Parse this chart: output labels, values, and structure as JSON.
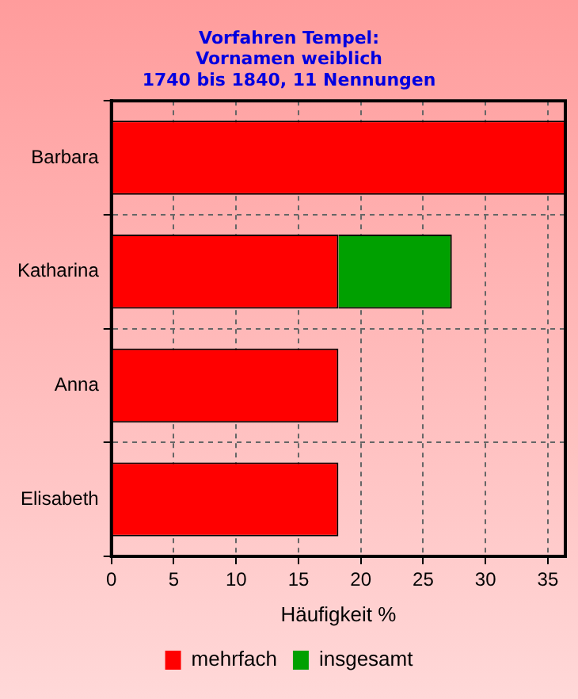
{
  "chart_data": {
    "type": "bar",
    "orientation": "horizontal",
    "stacked": true,
    "title": "Vorfahren Tempel:\nVornamen weiblich\n1740 bis 1840, 11 Nennungen",
    "xlabel": "Häufigkeit %",
    "categories": [
      "Barbara",
      "Katharina",
      "Anna",
      "Elisabeth"
    ],
    "series": [
      {
        "name": "mehrfach",
        "color": "#ff0000",
        "values": [
          36.4,
          18.2,
          18.2,
          18.2
        ]
      },
      {
        "name": "insgesamt",
        "color": "#00a000",
        "values": [
          0,
          9.1,
          0,
          0
        ]
      }
    ],
    "xlim": [
      0,
      36.4
    ],
    "xticks": [
      0,
      5,
      10,
      15,
      20,
      25,
      30,
      35
    ],
    "grid": true,
    "legend": "bottom"
  }
}
